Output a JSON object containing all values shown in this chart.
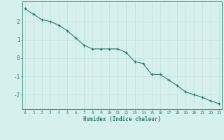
{
  "x": [
    0,
    1,
    2,
    3,
    4,
    5,
    6,
    7,
    8,
    9,
    10,
    11,
    12,
    13,
    14,
    15,
    16,
    17,
    18,
    19,
    20,
    21,
    22,
    23
  ],
  "y": [
    2.7,
    2.4,
    2.1,
    2.0,
    1.8,
    1.5,
    1.1,
    0.7,
    0.5,
    0.5,
    0.5,
    0.5,
    0.3,
    -0.2,
    -0.3,
    -0.9,
    -0.9,
    -1.2,
    -1.5,
    -1.85,
    -2.0,
    -2.15,
    -2.35,
    -2.5
  ],
  "xlabel": "Humidex (Indice chaleur)",
  "xlim": [
    -0.3,
    23.3
  ],
  "ylim": [
    -2.8,
    3.1
  ],
  "yticks": [
    -2,
    -1,
    0,
    1,
    2
  ],
  "xticks": [
    0,
    1,
    2,
    3,
    4,
    5,
    6,
    7,
    8,
    9,
    10,
    11,
    12,
    13,
    14,
    15,
    16,
    17,
    18,
    19,
    20,
    21,
    22,
    23
  ],
  "line_color": "#2e7d6e",
  "marker": "+",
  "bg_color": "#d6f0f0",
  "grid_color": "#c8dede",
  "axis_color": "#3a8c7a",
  "tick_color": "#2e7d6e",
  "label_color": "#2e7d6e"
}
